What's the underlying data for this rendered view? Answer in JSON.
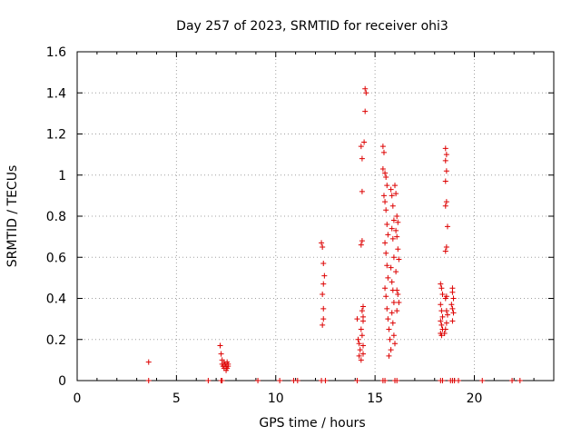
{
  "chart_data": {
    "type": "scatter",
    "title": "Day 257 of 2023, SRMTID for receiver ohi3",
    "xlabel": "GPS time / hours",
    "ylabel": "SRMTID / TECUs",
    "xlim": [
      0,
      24
    ],
    "ylim": [
      0,
      1.6
    ],
    "xticks": [
      0,
      5,
      10,
      15,
      20
    ],
    "xtick_labels": [
      "0",
      "5",
      "10",
      "15",
      "20"
    ],
    "yticks": [
      0,
      0.2,
      0.4,
      0.6,
      0.8,
      1,
      1.2,
      1.4,
      1.6
    ],
    "ytick_labels": [
      "0",
      "0.2",
      "0.4",
      "0.6",
      "0.8",
      "1",
      "1.2",
      "1.4",
      "1.6"
    ],
    "grid": true,
    "marker": "+",
    "color": "#dd0000",
    "series": [
      {
        "name": "SRMTID",
        "points": [
          [
            3.6,
            0.09
          ],
          [
            3.6,
            0.0
          ],
          [
            7.2,
            0.17
          ],
          [
            7.25,
            0.13
          ],
          [
            7.3,
            0.1
          ],
          [
            7.3,
            0.08
          ],
          [
            7.35,
            0.07
          ],
          [
            7.4,
            0.09
          ],
          [
            7.4,
            0.06
          ],
          [
            7.45,
            0.08
          ],
          [
            7.5,
            0.07
          ],
          [
            7.5,
            0.05
          ],
          [
            7.55,
            0.09
          ],
          [
            7.55,
            0.06
          ],
          [
            7.6,
            0.07
          ],
          [
            7.6,
            0.08
          ],
          [
            7.25,
            0.0
          ],
          [
            7.3,
            0.0
          ],
          [
            6.6,
            0.0
          ],
          [
            9.1,
            0.0
          ],
          [
            10.2,
            0.0
          ],
          [
            10.9,
            0.0
          ],
          [
            11.1,
            0.0
          ],
          [
            12.3,
            0.67
          ],
          [
            12.35,
            0.65
          ],
          [
            12.4,
            0.57
          ],
          [
            12.45,
            0.51
          ],
          [
            12.4,
            0.47
          ],
          [
            12.35,
            0.42
          ],
          [
            12.4,
            0.35
          ],
          [
            12.4,
            0.3
          ],
          [
            12.35,
            0.27
          ],
          [
            12.3,
            0.0
          ],
          [
            12.5,
            0.0
          ],
          [
            14.1,
            0.3
          ],
          [
            14.15,
            0.2
          ],
          [
            14.2,
            0.18
          ],
          [
            14.25,
            0.15
          ],
          [
            14.2,
            0.12
          ],
          [
            14.3,
            0.1
          ],
          [
            14.1,
            0.0
          ],
          [
            14.3,
            1.14
          ],
          [
            14.35,
            1.08
          ],
          [
            14.35,
            0.92
          ],
          [
            14.3,
            0.66
          ],
          [
            14.35,
            0.68
          ],
          [
            14.35,
            0.34
          ],
          [
            14.4,
            0.31
          ],
          [
            14.4,
            0.29
          ],
          [
            14.3,
            0.25
          ],
          [
            14.35,
            0.22
          ],
          [
            14.4,
            0.17
          ],
          [
            14.4,
            0.13
          ],
          [
            14.5,
            1.42
          ],
          [
            14.55,
            1.4
          ],
          [
            14.5,
            1.31
          ],
          [
            14.45,
            1.16
          ],
          [
            14.4,
            0.36
          ],
          [
            15.4,
            1.14
          ],
          [
            15.45,
            1.11
          ],
          [
            15.4,
            1.03
          ],
          [
            15.5,
            1.01
          ],
          [
            15.55,
            0.99
          ],
          [
            15.6,
            0.95
          ],
          [
            15.45,
            0.9
          ],
          [
            15.5,
            0.87
          ],
          [
            15.55,
            0.83
          ],
          [
            15.6,
            0.76
          ],
          [
            15.65,
            0.71
          ],
          [
            15.5,
            0.67
          ],
          [
            15.55,
            0.62
          ],
          [
            15.6,
            0.56
          ],
          [
            15.65,
            0.5
          ],
          [
            15.5,
            0.45
          ],
          [
            15.55,
            0.41
          ],
          [
            15.6,
            0.35
          ],
          [
            15.65,
            0.3
          ],
          [
            15.7,
            0.25
          ],
          [
            15.75,
            0.2
          ],
          [
            15.8,
            0.15
          ],
          [
            15.7,
            0.12
          ],
          [
            15.8,
            0.93
          ],
          [
            15.85,
            0.9
          ],
          [
            15.9,
            0.85
          ],
          [
            15.95,
            0.78
          ],
          [
            15.85,
            0.74
          ],
          [
            15.9,
            0.69
          ],
          [
            15.95,
            0.6
          ],
          [
            15.8,
            0.55
          ],
          [
            15.85,
            0.48
          ],
          [
            15.9,
            0.44
          ],
          [
            15.95,
            0.38
          ],
          [
            15.85,
            0.33
          ],
          [
            15.9,
            0.28
          ],
          [
            15.95,
            0.22
          ],
          [
            16.0,
            0.18
          ],
          [
            16.0,
            0.95
          ],
          [
            16.05,
            0.91
          ],
          [
            16.1,
            0.8
          ],
          [
            16.15,
            0.77
          ],
          [
            16.05,
            0.73
          ],
          [
            16.1,
            0.7
          ],
          [
            16.15,
            0.64
          ],
          [
            16.2,
            0.59
          ],
          [
            16.05,
            0.53
          ],
          [
            16.1,
            0.44
          ],
          [
            16.15,
            0.42
          ],
          [
            16.2,
            0.38
          ],
          [
            16.1,
            0.34
          ],
          [
            15.4,
            0.0
          ],
          [
            15.5,
            0.0
          ],
          [
            16.0,
            0.0
          ],
          [
            16.1,
            0.0
          ],
          [
            18.3,
            0.47
          ],
          [
            18.35,
            0.45
          ],
          [
            18.4,
            0.42
          ],
          [
            18.3,
            0.37
          ],
          [
            18.35,
            0.34
          ],
          [
            18.4,
            0.31
          ],
          [
            18.3,
            0.29
          ],
          [
            18.35,
            0.27
          ],
          [
            18.4,
            0.25
          ],
          [
            18.3,
            0.23
          ],
          [
            18.35,
            0.22
          ],
          [
            18.55,
            1.13
          ],
          [
            18.6,
            1.1
          ],
          [
            18.55,
            1.07
          ],
          [
            18.6,
            1.02
          ],
          [
            18.55,
            0.97
          ],
          [
            18.6,
            0.87
          ],
          [
            18.55,
            0.85
          ],
          [
            18.65,
            0.75
          ],
          [
            18.6,
            0.65
          ],
          [
            18.55,
            0.63
          ],
          [
            18.6,
            0.41
          ],
          [
            18.55,
            0.4
          ],
          [
            18.6,
            0.34
          ],
          [
            18.65,
            0.32
          ],
          [
            18.6,
            0.28
          ],
          [
            18.55,
            0.25
          ],
          [
            18.5,
            0.23
          ],
          [
            18.9,
            0.45
          ],
          [
            18.9,
            0.43
          ],
          [
            18.95,
            0.4
          ],
          [
            18.85,
            0.37
          ],
          [
            18.9,
            0.35
          ],
          [
            18.95,
            0.33
          ],
          [
            18.9,
            0.29
          ],
          [
            18.3,
            0.0
          ],
          [
            18.4,
            0.0
          ],
          [
            18.8,
            0.0
          ],
          [
            18.9,
            0.0
          ],
          [
            19.0,
            0.0
          ],
          [
            19.2,
            0.0
          ],
          [
            20.4,
            0.0
          ],
          [
            21.9,
            0.0
          ],
          [
            22.3,
            0.0
          ]
        ]
      }
    ]
  }
}
